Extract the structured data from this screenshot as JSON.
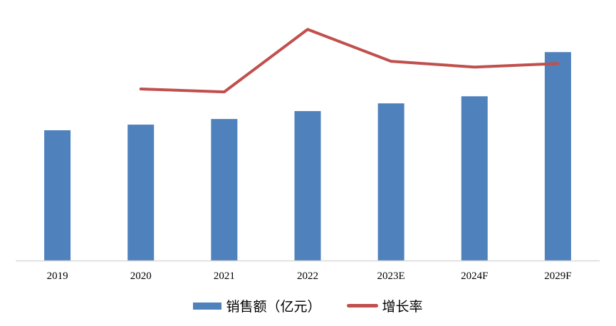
{
  "chart_data": {
    "type": "bar",
    "categories": [
      "2019",
      "2020",
      "2021",
      "2022",
      "2023E",
      "2024F",
      "2029F"
    ],
    "series": [
      {
        "name": "销售额（亿元）",
        "type": "bar",
        "axis": "primary",
        "color": "#4F81BD",
        "values": [
          62.5,
          65.2,
          67.9,
          71.7,
          75.4,
          78.8,
          100
        ]
      },
      {
        "name": "增长率",
        "type": "line",
        "axis": "secondary",
        "color": "#C0504D",
        "values": [
          null,
          82.3,
          80.9,
          110.9,
          95.6,
          92.8,
          94.5
        ]
      }
    ],
    "ylim": [
      0,
      125
    ],
    "y2lim": [
      0,
      125
    ],
    "grid": false,
    "value_axis_shown": false,
    "legend_placement": "bottom",
    "note_values": "relative, no value axis printed"
  }
}
